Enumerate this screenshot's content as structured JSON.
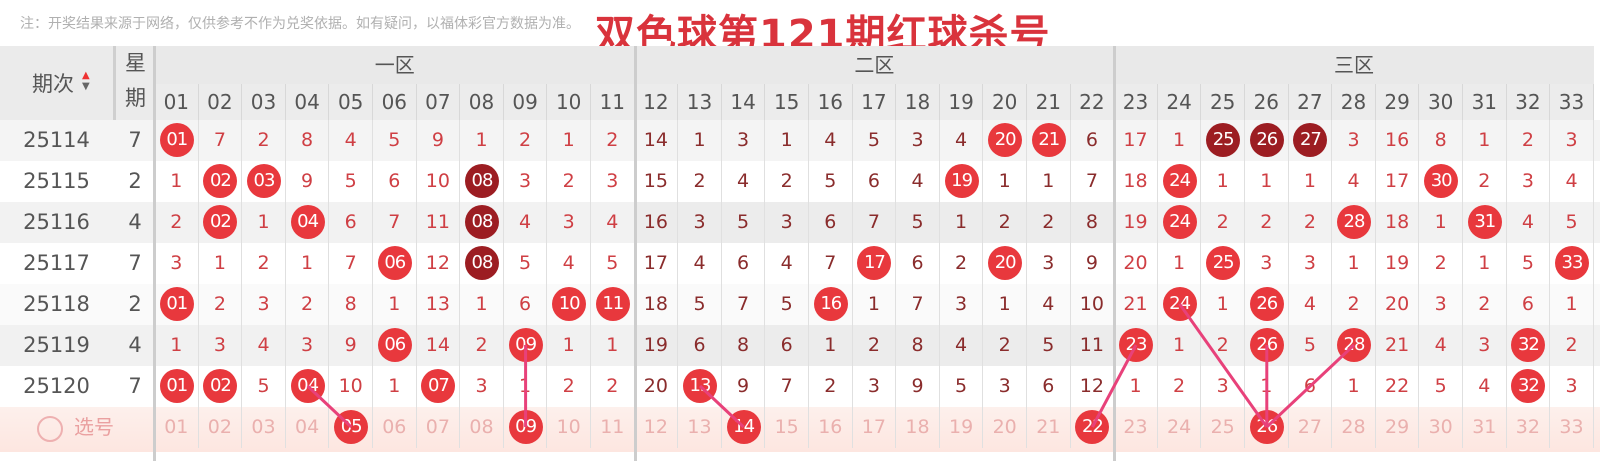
{
  "note": "注：开奖结果来源于网络，仅供参考不作为兑奖依据。如有疑问，以福体彩官方数据为准。",
  "title": "双色球第121期红球杀号",
  "header": {
    "period_label": "期次",
    "week_label_top": "星",
    "week_label_bottom": "期",
    "sort_icon": "sort-up-down-icon",
    "zones": [
      "一区",
      "二区",
      "三区"
    ],
    "columns": [
      "01",
      "02",
      "03",
      "04",
      "05",
      "06",
      "07",
      "08",
      "09",
      "10",
      "11",
      "12",
      "13",
      "14",
      "15",
      "16",
      "17",
      "18",
      "19",
      "20",
      "21",
      "22",
      "23",
      "24",
      "25",
      "26",
      "27",
      "28",
      "29",
      "30",
      "31",
      "32",
      "33"
    ]
  },
  "colors": {
    "ball": "#e8383d",
    "ball_repeat": "#9c1d22",
    "title": "#d9333c",
    "line": "#e8417a"
  },
  "rows": [
    {
      "period": "25114",
      "weekday": "7",
      "cells": [
        "01",
        "7",
        "2",
        "8",
        "4",
        "5",
        "9",
        "1",
        "2",
        "1",
        "2",
        "14",
        "1",
        "3",
        "1",
        "4",
        "5",
        "3",
        "4",
        "20",
        "21",
        "6",
        "17",
        "1",
        "25",
        "26",
        "27",
        "3",
        "16",
        "8",
        "1",
        "2",
        "3"
      ],
      "hits": [
        1,
        20,
        21,
        25,
        26,
        27
      ],
      "repeats": [
        25,
        26,
        27
      ]
    },
    {
      "period": "25115",
      "weekday": "2",
      "cells": [
        "1",
        "02",
        "03",
        "9",
        "5",
        "6",
        "10",
        "08",
        "3",
        "2",
        "3",
        "15",
        "2",
        "4",
        "2",
        "5",
        "6",
        "4",
        "19",
        "1",
        "1",
        "7",
        "18",
        "24",
        "1",
        "1",
        "1",
        "4",
        "17",
        "30",
        "2",
        "3",
        "4"
      ],
      "hits": [
        2,
        3,
        8,
        19,
        24,
        30
      ],
      "repeats": [
        8
      ]
    },
    {
      "period": "25116",
      "weekday": "4",
      "cells": [
        "2",
        "02",
        "1",
        "04",
        "6",
        "7",
        "11",
        "08",
        "4",
        "3",
        "4",
        "16",
        "3",
        "5",
        "3",
        "6",
        "7",
        "5",
        "1",
        "2",
        "2",
        "8",
        "19",
        "24",
        "2",
        "2",
        "2",
        "28",
        "18",
        "1",
        "31",
        "4",
        "5"
      ],
      "hits": [
        2,
        4,
        8,
        24,
        28,
        31
      ],
      "repeats": [
        8
      ]
    },
    {
      "period": "25117",
      "weekday": "7",
      "cells": [
        "3",
        "1",
        "2",
        "1",
        "7",
        "06",
        "12",
        "08",
        "5",
        "4",
        "5",
        "17",
        "4",
        "6",
        "4",
        "7",
        "17",
        "6",
        "2",
        "20",
        "3",
        "9",
        "20",
        "1",
        "25",
        "3",
        "3",
        "1",
        "19",
        "2",
        "1",
        "5",
        "33"
      ],
      "hits": [
        6,
        8,
        17,
        20,
        25,
        33
      ],
      "repeats": [
        8
      ]
    },
    {
      "period": "25118",
      "weekday": "2",
      "cells": [
        "01",
        "2",
        "3",
        "2",
        "8",
        "1",
        "13",
        "1",
        "6",
        "10",
        "11",
        "18",
        "5",
        "7",
        "5",
        "16",
        "1",
        "7",
        "3",
        "1",
        "4",
        "10",
        "21",
        "24",
        "1",
        "26",
        "4",
        "2",
        "20",
        "3",
        "2",
        "6",
        "1"
      ],
      "hits": [
        1,
        10,
        11,
        16,
        24,
        26
      ],
      "repeats": []
    },
    {
      "period": "25119",
      "weekday": "4",
      "cells": [
        "1",
        "3",
        "4",
        "3",
        "9",
        "06",
        "14",
        "2",
        "09",
        "1",
        "1",
        "19",
        "6",
        "8",
        "6",
        "1",
        "2",
        "8",
        "4",
        "2",
        "5",
        "11",
        "23",
        "1",
        "2",
        "26",
        "5",
        "28",
        "21",
        "4",
        "3",
        "32",
        "2"
      ],
      "hits": [
        6,
        9,
        23,
        26,
        28,
        32
      ],
      "repeats": []
    },
    {
      "period": "25120",
      "weekday": "7",
      "cells": [
        "01",
        "02",
        "5",
        "04",
        "10",
        "1",
        "07",
        "3",
        "1",
        "2",
        "2",
        "20",
        "13",
        "9",
        "7",
        "2",
        "3",
        "9",
        "5",
        "3",
        "6",
        "12",
        "1",
        "2",
        "3",
        "1",
        "6",
        "1",
        "22",
        "5",
        "4",
        "32",
        "3"
      ],
      "hits": [
        1,
        2,
        4,
        7,
        13,
        32
      ],
      "repeats": []
    }
  ],
  "select_row": {
    "label": "选号",
    "radio_icon": "radio-circle-icon",
    "selected": [
      5,
      9,
      14,
      22,
      26
    ]
  },
  "trend_lines": [
    {
      "from_period": "25120",
      "from": 4,
      "to": 5
    },
    {
      "from_period": "25119",
      "from": 9,
      "to": 9
    },
    {
      "from_period": "25120",
      "from": 13,
      "to": 14
    },
    {
      "from_period": "25119",
      "from": 23,
      "to": 22
    },
    {
      "from_period": "25118",
      "from": 24,
      "to": 26
    },
    {
      "from_period": "25119",
      "from": 26,
      "to": 26
    },
    {
      "from_period": "25119",
      "from": 28,
      "to": 26
    }
  ]
}
